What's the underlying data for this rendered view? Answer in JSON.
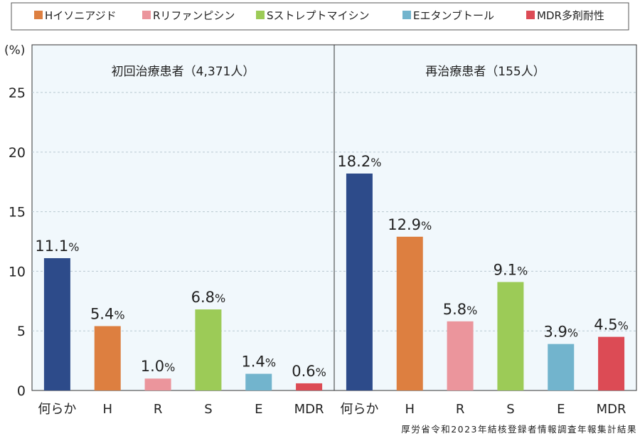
{
  "legend": [
    {
      "label": "Hイソニアジド",
      "color": "#dd7f40"
    },
    {
      "label": "Rリファンピシン",
      "color": "#eb959c"
    },
    {
      "label": "Sストレプトマイシン",
      "color": "#9ccb57"
    },
    {
      "label": "Eエタンブトール",
      "color": "#72b4cd"
    },
    {
      "label": "MDR多剤耐性",
      "color": "#dc4b55"
    }
  ],
  "source": "厚労省令和2023年結核登録者情報調査年報集計結果",
  "chart_data": {
    "type": "bar",
    "ylabel": "(%)",
    "ylim": [
      0,
      29
    ],
    "yticks": [
      0,
      5,
      10,
      15,
      20,
      25
    ],
    "grid": true,
    "legend_position": "top",
    "categories": [
      "何らか",
      "H",
      "R",
      "S",
      "E",
      "MDR"
    ],
    "category_colors": [
      "#2d4b8a",
      "#dd7f40",
      "#eb959c",
      "#9ccb57",
      "#72b4cd",
      "#dc4b55"
    ],
    "panels": [
      {
        "title": "初回治療患者（4,371人）",
        "values": [
          11.1,
          5.4,
          1.0,
          6.8,
          1.4,
          0.6
        ],
        "labels": [
          "11.1",
          "5.4",
          "1.0",
          "6.8",
          "1.4",
          "0.6"
        ]
      },
      {
        "title": "再治療患者（155人）",
        "values": [
          18.2,
          12.9,
          5.8,
          9.1,
          3.9,
          4.5
        ],
        "labels": [
          "18.2",
          "12.9",
          "5.8",
          "9.1",
          "3.9",
          "4.5"
        ]
      }
    ],
    "value_suffix": "%"
  }
}
